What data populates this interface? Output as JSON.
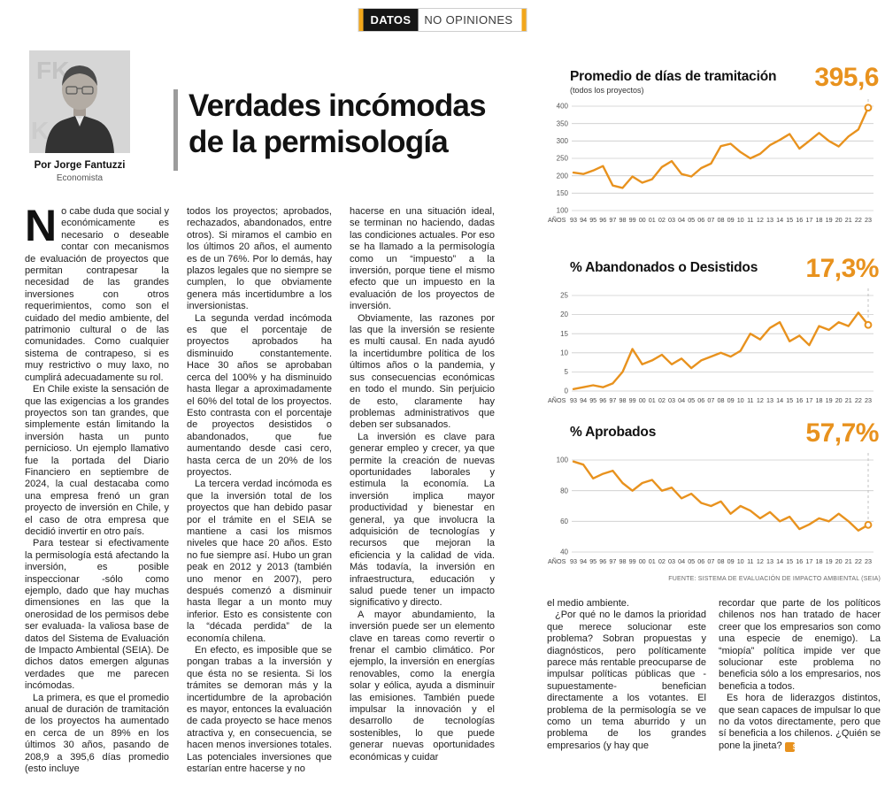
{
  "header": {
    "badge_bold": "DATOS",
    "badge_rest": "NO OPINIONES"
  },
  "byline": {
    "author": "Por Jorge Fantuzzi",
    "role": "Economista"
  },
  "title": {
    "line1": "Verdades incómodas",
    "line2": "de la permisología"
  },
  "article": {
    "dropcap": "N",
    "end_mark": "S",
    "col1": [
      "o cabe duda que social y económicamente es necesario o deseable contar con mecanismos de evaluación de proyectos que permitan contrapesar la necesidad de las grandes inversiones con otros requerimientos, como son el cuidado del medio ambiente, del patrimonio cultural o de las comunidades. Como cualquier sistema de contrapeso, si es muy restrictivo o muy laxo, no cumplirá adecuadamente su rol.",
      "En Chile existe la sensación de que las exigencias a los grandes proyectos son tan grandes, que simplemente están limitando la inversión hasta un punto pernicioso. Un ejemplo llamativo fue la portada del Diario Financiero en septiembre de 2024, la cual destacaba como una empresa frenó un gran proyecto de inversión en Chile, y el caso de otra empresa que decidió invertir en otro país.",
      "Para testear si efectivamente la permisología está afectando la inversión, es posible inspeccionar -sólo como ejemplo, dado que hay muchas dimensiones en las que la onerosidad de los permisos debe ser evaluada- la valiosa base de datos del Sistema de Evaluación de Impacto Ambiental (SEIA). De dichos datos emergen algunas verdades que me parecen incómodas.",
      "La primera, es que el promedio anual de duración de tramitación de los proyectos ha aumentado en cerca de un 89% en los últimos 30 años, pasando de 208,9 a 395,6 días promedio (esto incluye"
    ],
    "col2": [
      "todos los proyectos; aprobados, rechazados, abandonados, entre otros). Si miramos el cambio en los últimos 20 años, el aumento es de un 76%. Por lo demás, hay plazos legales que no siempre se cumplen, lo que obviamente genera más incertidumbre a los inversionistas.",
      "La segunda verdad incómoda es que el porcentaje de proyectos aprobados ha disminuido constantemente. Hace 30 años se aprobaban cerca del 100% y ha disminuido hasta llegar a aproximadamente el 60% del total de los proyectos. Esto contrasta con el porcentaje de proyectos desistidos o abandonados, que fue aumentando desde casi cero, hasta cerca de un 20% de los proyectos.",
      "La tercera verdad incómoda es que la inversión total de los proyectos que han debido pasar por el trámite en el SEIA se mantiene a casi los mismos niveles que hace 20 años. Esto no fue siempre así. Hubo un gran peak en 2012 y 2013 (también uno menor en 2007), pero después comenzó a disminuir hasta llegar a un monto muy inferior. Esto es consistente con la “década perdida” de la economía chilena.",
      "En efecto, es imposible que se pongan trabas a la inversión y que ésta no se resienta. Si los trámites se demoran más y la incertidumbre de la aprobación es mayor, entonces la evaluación de cada proyecto se hace menos atractiva y, en consecuencia, se hacen menos inversiones totales. Las potenciales inversiones que estarían entre hacerse y no"
    ],
    "col3": [
      "hacerse en una situación ideal, se terminan no haciendo, dadas las condiciones actuales. Por eso se ha llamado a la permisología como un “impuesto” a la inversión, porque tiene el mismo efecto que un impuesto en la evaluación de los proyectos de inversión.",
      "Obviamente, las razones por las que la inversión se resiente es multi causal. En nada ayudó la incertidumbre política de los últimos años o la pandemia, y sus consecuencias económicas en todo el mundo. Sin perjuicio de esto, claramente hay problemas administrativos que deben ser subsanados.",
      "La inversión es clave para generar empleo y crecer, ya que permite la creación de nuevas oportunidades laborales y estimula la economía. La inversión implica mayor productividad y bienestar en general, ya que involucra la adquisición de tecnologías y recursos que mejoran la eficiencia y la calidad de vida. Más todavía, la inversión en infraestructura, educación y salud puede tener un impacto significativo y directo.",
      "A mayor abundamiento, la inversión puede ser un elemento clave en tareas como revertir o frenar el cambio climático. Por ejemplo, la inversión en energías renovables, como la energía solar y eólica, ayuda a disminuir las emisiones. También puede impulsar la innovación y el desarrollo de tecnologías sostenibles, lo que puede generar nuevas oportunidades económicas y cuidar"
    ],
    "col4": [
      "el medio ambiente.",
      "¿Por qué no le damos la prioridad que merece solucionar este problema? Sobran propuestas y diagnósticos, pero políticamente parece más rentable preocuparse de impulsar políticas públicas que -supuestamente- benefician directamente a los votantes. El problema de la permisología se ve como un tema aburrido y un problema de los grandes empresarios (y hay que"
    ],
    "col5": [
      "recordar que parte de los políticos chilenos nos han tratado de hacer creer que los empresarios son como una especie de enemigo). La “miopía” política impide ver que solucionar este problema no beneficia sólo a los empresarios, nos beneficia a todos.",
      "Es hora de liderazgos distintos, que sean capaces de impulsar lo que no da votos directamente, pero que sí beneficia a los chilenos. ¿Quién se pone la jineta?"
    ]
  },
  "source": "FUENTE: SISTEMA DE EVALUACIÓN DE IMPACTO AMBIENTAL (SEIA)",
  "accent_color": "#E8921E",
  "chart_data": [
    {
      "type": "line",
      "name": "promedio-dias-tramitacion",
      "title": "Promedio de días de tramitación",
      "subtitle": "(todos los proyectos)",
      "big_value": "395,6",
      "x_axis_label": "AÑOS",
      "x": [
        "93",
        "94",
        "95",
        "96",
        "97",
        "98",
        "99",
        "00",
        "01",
        "02",
        "03",
        "04",
        "05",
        "06",
        "07",
        "08",
        "09",
        "10",
        "11",
        "12",
        "13",
        "14",
        "15",
        "16",
        "17",
        "18",
        "19",
        "20",
        "21",
        "22",
        "23"
      ],
      "values": [
        209,
        205,
        215,
        228,
        172,
        165,
        198,
        180,
        190,
        225,
        242,
        205,
        198,
        222,
        235,
        285,
        292,
        268,
        250,
        263,
        288,
        303,
        320,
        278,
        300,
        323,
        300,
        284,
        313,
        333,
        395.6
      ],
      "ylim": [
        100,
        400
      ],
      "yticks": [
        100,
        150,
        200,
        250,
        300,
        350,
        400
      ],
      "line_color": "#E8921E",
      "grid": true,
      "legend": "none"
    },
    {
      "type": "line",
      "name": "pct-abandonados-desistidos",
      "title": "% Abandonados o Desistidos",
      "subtitle": "",
      "big_value": "17,3%",
      "x_axis_label": "AÑOS",
      "x": [
        "93",
        "94",
        "95",
        "96",
        "97",
        "98",
        "99",
        "00",
        "01",
        "02",
        "03",
        "04",
        "05",
        "06",
        "07",
        "08",
        "09",
        "10",
        "11",
        "12",
        "13",
        "14",
        "15",
        "16",
        "17",
        "18",
        "19",
        "20",
        "21",
        "22",
        "23"
      ],
      "values": [
        0.5,
        1,
        1.5,
        1,
        2,
        5,
        11,
        7,
        8,
        9.5,
        7,
        8.5,
        6,
        8,
        9,
        10,
        9,
        10.5,
        15,
        13.5,
        16.5,
        18,
        13,
        14.5,
        12,
        17,
        16,
        18,
        17,
        20.5,
        17.3
      ],
      "ylim": [
        0,
        25
      ],
      "yticks": [
        0,
        5,
        10,
        15,
        20,
        25
      ],
      "line_color": "#E8921E",
      "grid": true,
      "legend": "none"
    },
    {
      "type": "line",
      "name": "pct-aprobados",
      "title": "% Aprobados",
      "subtitle": "",
      "big_value": "57,7%",
      "x_axis_label": "AÑOS",
      "x": [
        "93",
        "94",
        "95",
        "96",
        "97",
        "98",
        "99",
        "00",
        "01",
        "02",
        "03",
        "04",
        "05",
        "06",
        "07",
        "08",
        "09",
        "10",
        "11",
        "12",
        "13",
        "14",
        "15",
        "16",
        "17",
        "18",
        "19",
        "20",
        "21",
        "22",
        "23"
      ],
      "values": [
        99,
        97,
        88,
        91,
        93,
        85,
        80,
        85,
        87,
        80,
        82,
        75,
        78,
        72,
        70,
        73,
        65,
        70,
        67,
        62,
        66,
        60,
        63,
        55,
        58,
        62,
        60,
        65,
        60,
        54,
        57.7
      ],
      "ylim": [
        40,
        100
      ],
      "yticks": [
        40,
        60,
        80,
        100
      ],
      "line_color": "#E8921E",
      "grid": true,
      "legend": "none"
    }
  ]
}
